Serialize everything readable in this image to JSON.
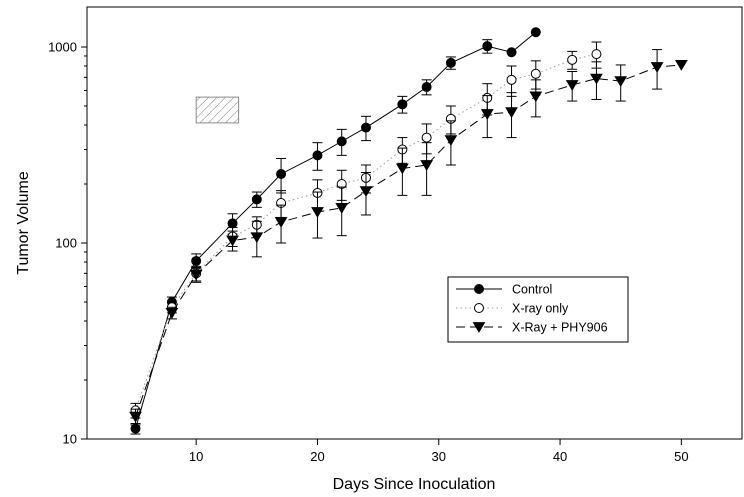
{
  "chart_data": {
    "type": "line",
    "xlabel": "Days Since Inoculation",
    "ylabel": "Tumor Volume",
    "xlim": [
      1,
      55
    ],
    "ylim": [
      10,
      1600
    ],
    "yscale": "log",
    "xticks": [
      10,
      20,
      30,
      40,
      50
    ],
    "yticks": [
      10,
      100,
      1000
    ],
    "grid": false,
    "legend_position": "right-center",
    "series": [
      {
        "name": "Control",
        "marker": "filled-circle",
        "line": "solid",
        "x": [
          5,
          8,
          10,
          13,
          15,
          17,
          20,
          22,
          24,
          27,
          29,
          31,
          34,
          36,
          38
        ],
        "y": [
          11.3,
          50,
          81,
          126,
          167,
          225,
          280,
          330,
          388,
          510,
          625,
          830,
          1010,
          940,
          1190
        ],
        "err": [
          0.7,
          3,
          7,
          15,
          15,
          45,
          45,
          50,
          55,
          50,
          55,
          60,
          80,
          0,
          0
        ]
      },
      {
        "name": "X-ray only",
        "marker": "open-circle",
        "line": "dotted",
        "x": [
          5,
          8,
          10,
          13,
          15,
          17,
          20,
          22,
          24,
          27,
          29,
          31,
          34,
          36,
          38,
          41,
          43
        ],
        "y": [
          14,
          47,
          70,
          108,
          124,
          160,
          180,
          200,
          215,
          300,
          345,
          430,
          550,
          680,
          730,
          860,
          920
        ],
        "err": [
          1.2,
          3,
          6,
          12,
          12,
          25,
          30,
          35,
          35,
          45,
          60,
          70,
          100,
          120,
          120,
          90,
          140
        ]
      },
      {
        "name": "X-Ray + PHY906",
        "marker": "filled-triangle-down",
        "line": "dashed",
        "x": [
          5,
          8,
          10,
          13,
          15,
          17,
          20,
          22,
          24,
          27,
          29,
          31,
          34,
          36,
          38,
          41,
          43,
          45,
          48,
          50
        ],
        "y": [
          13,
          44,
          69,
          103,
          107,
          128,
          144,
          151,
          184,
          240,
          250,
          335,
          455,
          465,
          560,
          640,
          690,
          670,
          790,
          810
        ],
        "err": [
          1.2,
          3,
          6,
          12,
          22,
          28,
          38,
          42,
          45,
          65,
          75,
          85,
          110,
          120,
          120,
          110,
          150,
          140,
          180,
          0
        ]
      }
    ],
    "annotations": [
      {
        "type": "hatched-rectangle",
        "x": [
          10,
          13.5
        ],
        "y": [
          410,
          555
        ]
      }
    ]
  }
}
